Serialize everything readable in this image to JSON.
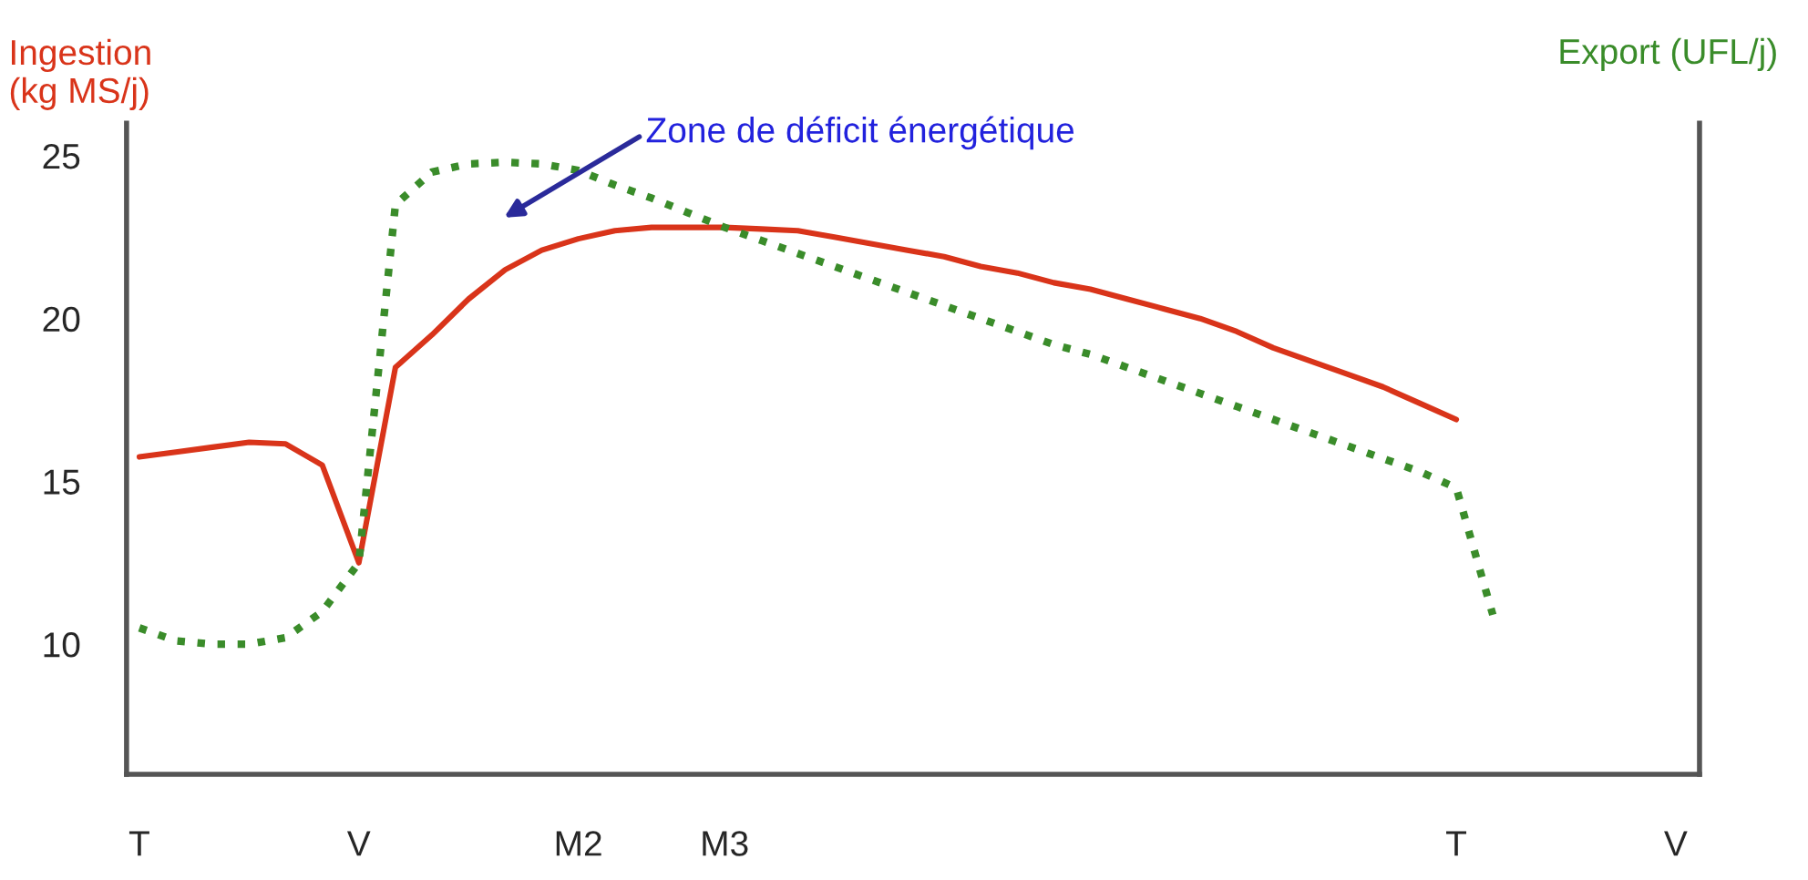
{
  "chart_data": {
    "type": "line",
    "ylabel": "Ingestion\n(kg MS/j)",
    "y2label": "Export (UFL/j)",
    "categories": [
      "T",
      null,
      null,
      null,
      null,
      null,
      "V",
      null,
      null,
      null,
      null,
      null,
      "M2",
      null,
      null,
      null,
      "M3",
      null,
      null,
      null,
      null,
      null,
      null,
      null,
      null,
      null,
      null,
      null,
      null,
      null,
      null,
      null,
      null,
      null,
      null,
      null,
      "T",
      null,
      null,
      null,
      null,
      null,
      "V"
    ],
    "ylim": [
      6,
      26
    ],
    "yticks": [
      10,
      15,
      20,
      25
    ],
    "grid": false,
    "series": [
      {
        "color": "#d9341a",
        "line_style": "solid",
        "values": [
          15.75,
          15.9,
          16.05,
          16.2,
          16.15,
          15.5,
          12.5,
          18.5,
          19.5,
          20.6,
          21.5,
          22.1,
          22.45,
          22.7,
          22.8,
          22.8,
          22.8,
          22.75,
          22.7,
          22.5,
          22.3,
          22.1,
          21.9,
          21.6,
          21.4,
          21.1,
          20.9,
          20.6,
          20.3,
          20.0,
          19.6,
          19.1,
          18.7,
          18.3,
          17.9,
          17.4,
          16.9,
          null,
          null,
          null,
          null,
          null,
          null
        ]
      },
      {
        "color": "#3a8c2a",
        "line_style": "dotted",
        "values": [
          10.5,
          10.1,
          10.0,
          10.0,
          10.2,
          11.0,
          12.5,
          23.5,
          24.5,
          24.75,
          24.8,
          24.75,
          24.55,
          24.1,
          23.7,
          23.25,
          22.8,
          22.4,
          22.0,
          21.6,
          21.2,
          20.8,
          20.4,
          20.0,
          19.6,
          19.2,
          18.9,
          18.5,
          18.1,
          17.7,
          17.3,
          16.9,
          16.5,
          16.1,
          15.7,
          15.3,
          14.8,
          10.9,
          null,
          null,
          null,
          null,
          null
        ]
      }
    ],
    "annotations": [
      "Zone de déficit énergétique"
    ]
  }
}
